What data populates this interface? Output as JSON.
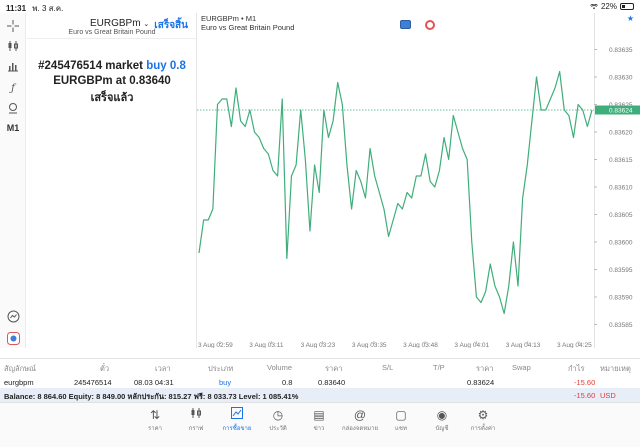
{
  "status_bar": {
    "time": "11:31",
    "date": "พ. 3 ส.ค.",
    "battery": "22%"
  },
  "left_toolbar": {
    "items": [
      "crosshair-icon",
      "candles-icon",
      "indicators-icon",
      "fx-icon",
      "objects-icon",
      "M1",
      "chart-settings-icon",
      "trade-icon"
    ]
  },
  "trade_panel": {
    "symbol": "EURGBPm",
    "done_button": "เสร็จสิ้น",
    "description": "Euro vs Great Britain Pound",
    "order_id_text": "#245476514 market ",
    "order_action": "buy 0.8",
    "price_prefix": "EURGBPm at ",
    "price": "0.83640",
    "status": "เสร็จแล้ว"
  },
  "chart": {
    "title_symbol": "EURGBPm • M1",
    "title_desc": "Euro vs Great Britain Pound",
    "current_price_label": "0.83624",
    "accent_color": "#3fae7a",
    "price_line_color": "#3fae7a"
  },
  "chart_data": {
    "type": "line",
    "title": "EURGBPm • M1",
    "subtitle": "Euro vs Great Britain Pound",
    "xlabel": "",
    "ylabel": "",
    "ylim": [
      0.83582,
      0.83638
    ],
    "x_tick_labels": [
      "3 Aug 02:59",
      "3 Aug 03:11",
      "3 Aug 03:23",
      "3 Aug 03:35",
      "3 Aug 03:48",
      "3 Aug 04:01",
      "3 Aug 04:13",
      "3 Aug 04:25"
    ],
    "y_tick_labels": [
      "0.83635",
      "0.83630",
      "0.83625",
      "0.83620",
      "0.83615",
      "0.83610",
      "0.83605",
      "0.83600",
      "0.83595",
      "0.83590",
      "0.83585"
    ],
    "horizontal_line": 0.83624,
    "series": [
      {
        "values": [
          0.83598,
          0.83604,
          0.83604,
          0.83606,
          0.83625,
          0.83626,
          0.83626,
          0.83621,
          0.83628,
          0.83622,
          0.83621,
          0.83624,
          0.8362,
          0.83619,
          0.83617,
          0.83616,
          0.83613,
          0.83612,
          0.83626,
          0.83597,
          0.83612,
          0.83614,
          0.83624,
          0.83615,
          0.83602,
          0.83614,
          0.83609,
          0.83624,
          0.83619,
          0.83622,
          0.83629,
          0.83625,
          0.83614,
          0.83606,
          0.83613,
          0.83611,
          0.83608,
          0.83617,
          0.83612,
          0.83609,
          0.83606,
          0.83601,
          0.83604,
          0.83607,
          0.83606,
          0.83609,
          0.83608,
          0.83612,
          0.83612,
          0.83616,
          0.83611,
          0.8361,
          0.83613,
          0.83619,
          0.83615,
          0.83623,
          0.8362,
          0.83617,
          0.83615,
          0.836,
          0.8359,
          0.83589,
          0.83591,
          0.83596,
          0.83592,
          0.8359,
          0.83587,
          0.83592,
          0.836,
          0.83592,
          0.83608,
          0.83614,
          0.83622,
          0.8363,
          0.83624,
          0.83624,
          0.83626,
          0.83628,
          0.83631,
          0.83624,
          0.83623,
          0.83619,
          0.83625,
          0.83624,
          0.83621,
          0.83624
        ]
      }
    ],
    "grid": false
  },
  "trade_table": {
    "headers": [
      "สัญลักษณ์",
      "ตั๋ว",
      "เวลา",
      "ประเภท",
      "Volume",
      "ราคา",
      "S/L",
      "T/P",
      "ราคา",
      "Swap",
      "กำไร",
      "หมายเหตุ"
    ],
    "rows": [
      {
        "symbol": "eurgbpm",
        "ticket": "245476514",
        "time": "08.03 04:31",
        "type": "buy",
        "volume": "0.8",
        "price": "0.83640",
        "sl": "",
        "tp": "",
        "current": "0.83624",
        "swap": "",
        "profit": "-15.60",
        "comment": ""
      }
    ],
    "balance_line": "Balance: 8 864.60 Equity: 8 849.00 หลักประกัน: 815.27 ฟรี: 8 033.73 Level: 1 085.41%",
    "total_profit": "-15.60",
    "currency": "USD"
  },
  "bottom_nav": {
    "items": [
      {
        "label": "ราคา",
        "icon": "quotes-icon"
      },
      {
        "label": "กราฟ",
        "icon": "chart-icon"
      },
      {
        "label": "การซื้อขาย",
        "icon": "trade-icon"
      },
      {
        "label": "ประวัติ",
        "icon": "history-icon"
      },
      {
        "label": "ข่าว",
        "icon": "news-icon"
      },
      {
        "label": "กล่องจดหมาย",
        "icon": "mailbox-icon"
      },
      {
        "label": "แชท",
        "icon": "chat-icon"
      },
      {
        "label": "บัญชี",
        "icon": "account-icon"
      },
      {
        "label": "การตั้งค่า",
        "icon": "settings-icon"
      }
    ],
    "active_index": 2
  }
}
